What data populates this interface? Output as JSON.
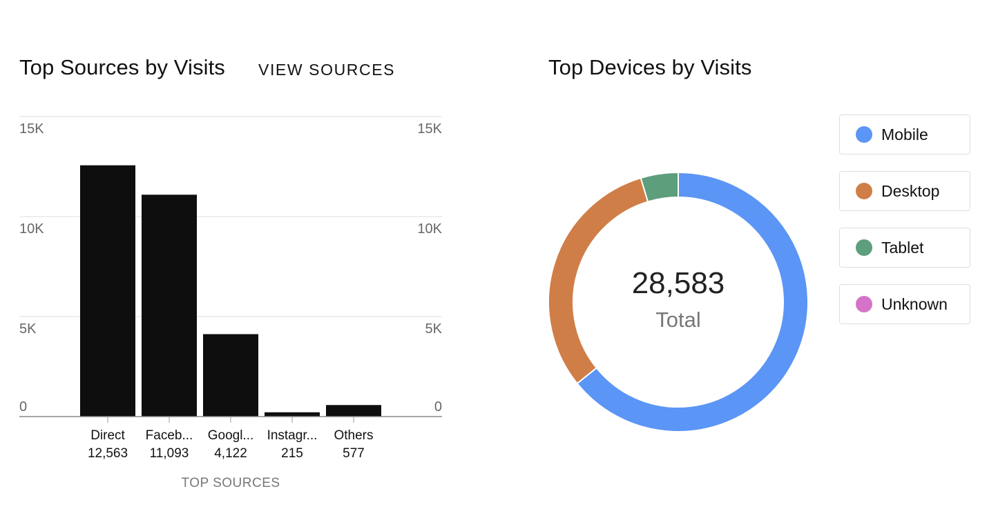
{
  "sources_panel": {
    "title": "Top Sources by Visits",
    "view_link": "VIEW SOURCES"
  },
  "devices_panel": {
    "title": "Top Devices by Visits",
    "center_total": "28,583",
    "center_label": "Total",
    "legend": [
      {
        "label": "Mobile",
        "color": "#5b95f5"
      },
      {
        "label": "Desktop",
        "color": "#d07e47"
      },
      {
        "label": "Tablet",
        "color": "#5d9e7c"
      },
      {
        "label": "Unknown",
        "color": "#d473c7"
      }
    ]
  },
  "chart_data": [
    {
      "type": "bar",
      "categories": [
        "Direct",
        "Faceb...",
        "Googl...",
        "Instagr...",
        "Others"
      ],
      "value_labels": [
        "12,563",
        "11,093",
        "4,122",
        "215",
        "577"
      ],
      "values": [
        12563,
        11093,
        4122,
        215,
        577
      ],
      "xlabel": "TOP SOURCES",
      "ylim": [
        0,
        15000
      ],
      "yticks": [
        "0",
        "5K",
        "10K",
        "15K"
      ],
      "grid": true,
      "bar_color": "#0e0e0e"
    },
    {
      "type": "pie",
      "variant": "donut",
      "labels": [
        "Mobile",
        "Desktop",
        "Tablet",
        "Unknown"
      ],
      "values": [
        18350,
        8900,
        1333,
        0
      ],
      "colors": [
        "#5b95f5",
        "#d07e47",
        "#5d9e7c",
        "#d473c7"
      ],
      "legend": "right"
    }
  ]
}
